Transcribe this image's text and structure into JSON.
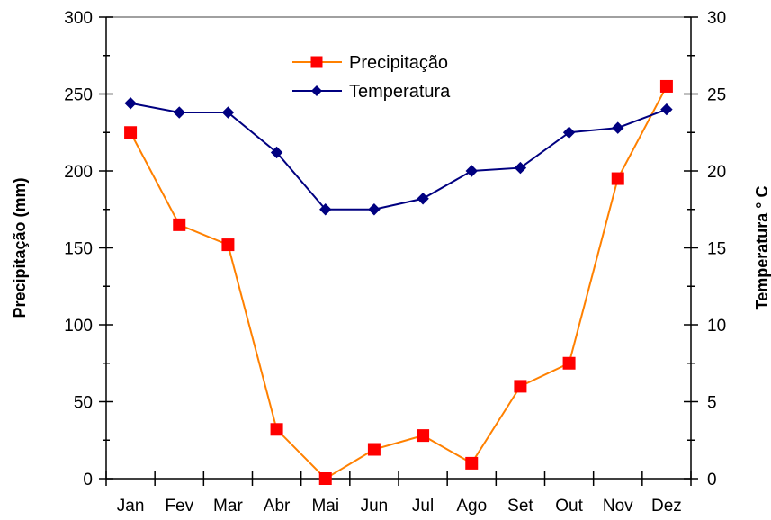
{
  "chart_data": {
    "type": "line",
    "categories": [
      "Jan",
      "Fev",
      "Mar",
      "Abr",
      "Mai",
      "Jun",
      "Jul",
      "Ago",
      "Set",
      "Out",
      "Nov",
      "Dez"
    ],
    "series": [
      {
        "name": "Precipitação",
        "axis": "left",
        "color": "#ff0000",
        "line_color": "#ff8000",
        "marker": "square",
        "values": [
          225,
          165,
          152,
          32,
          0,
          19,
          28,
          10,
          60,
          75,
          195,
          255
        ]
      },
      {
        "name": "Temperatura",
        "axis": "right",
        "color": "#000080",
        "line_color": "#000080",
        "marker": "diamond",
        "values": [
          24.4,
          23.8,
          23.8,
          21.2,
          17.5,
          17.5,
          18.2,
          20.0,
          20.2,
          22.5,
          22.8,
          24.0
        ]
      }
    ],
    "ylabel": "Precipitação (mm)",
    "y2label": "Temperatura ° C",
    "ylim": [
      0,
      300
    ],
    "y2lim": [
      0,
      30
    ],
    "yticks": [
      "0",
      "50",
      "100",
      "150",
      "200",
      "250",
      "300"
    ],
    "y2ticks": [
      "0",
      "5",
      "10",
      "15",
      "20",
      "25",
      "30"
    ],
    "grid": false,
    "legend": "top-center"
  }
}
